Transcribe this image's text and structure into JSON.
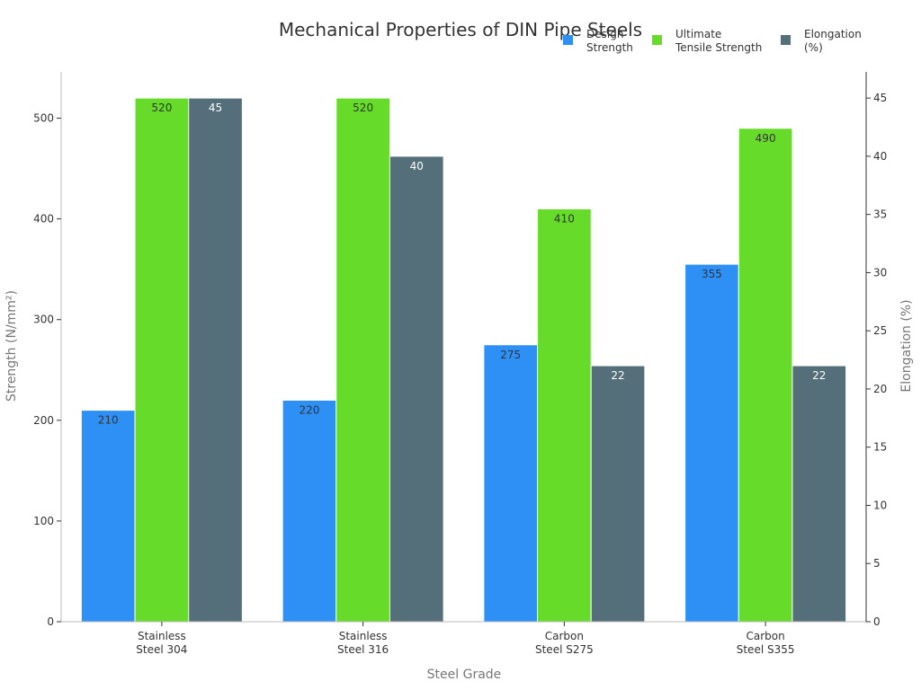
{
  "chart_data": {
    "type": "bar",
    "title": "Mechanical Properties of DIN Pipe Steels",
    "xlabel": "Steel Grade",
    "ylabel": "Strength (N/mm²)",
    "y2label": "Elongation (%)",
    "categories": [
      [
        "Stainless",
        "Steel 304"
      ],
      [
        "Stainless",
        "Steel 316"
      ],
      [
        "Carbon",
        "Steel S275"
      ],
      [
        "Carbon",
        "Steel S355"
      ]
    ],
    "series": [
      {
        "name": [
          "Design",
          "Strength"
        ],
        "axis": "left",
        "color": "#2E90F5",
        "label_color": "#333333",
        "values": [
          210,
          220,
          275,
          355
        ]
      },
      {
        "name": [
          "Ultimate",
          "Tensile Strength"
        ],
        "axis": "left",
        "color": "#66DB2A",
        "label_color": "#333333",
        "values": [
          520,
          520,
          410,
          490
        ]
      },
      {
        "name": [
          "Elongation",
          "(%)"
        ],
        "axis": "right",
        "color": "#546E7A",
        "label_color": "#ffffff",
        "values": [
          45,
          40,
          22,
          22
        ]
      }
    ],
    "ylim": [
      0,
      546
    ],
    "yticks": [
      0,
      100,
      200,
      300,
      400,
      500
    ],
    "y2lim": [
      0,
      47.25
    ],
    "y2ticks": [
      0,
      5,
      10,
      15,
      20,
      25,
      30,
      35,
      40,
      45
    ],
    "grid": false,
    "legend": "top-right"
  }
}
